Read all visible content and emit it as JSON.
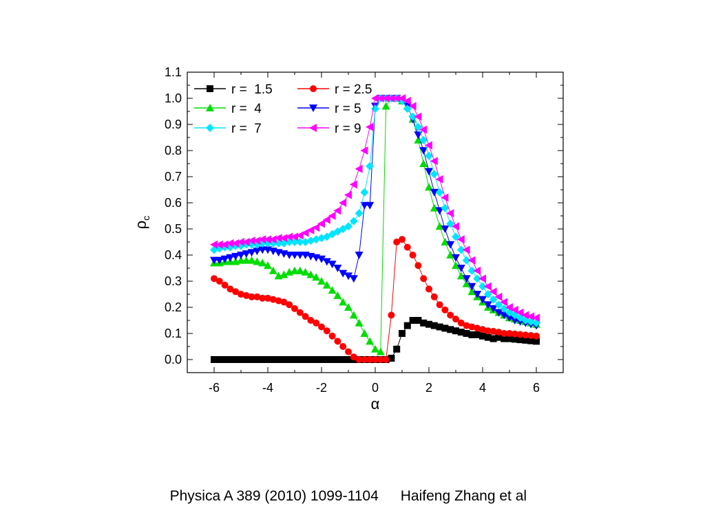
{
  "caption": {
    "citation": "Physica A 389 (2010) 1099-1104",
    "authors": "Haifeng Zhang et al"
  },
  "chart_data": {
    "type": "scatter",
    "xlabel": "α",
    "ylabel": "ρc",
    "xlim": [
      -7,
      7
    ],
    "ylim": [
      -0.05,
      1.1
    ],
    "xticks": [
      "-6",
      "-4",
      "-2",
      "0",
      "2",
      "4",
      "6"
    ],
    "yticks": [
      "0.0",
      "0.1",
      "0.2",
      "0.3",
      "0.4",
      "0.5",
      "0.6",
      "0.7",
      "0.8",
      "0.9",
      "1.0",
      "1.1"
    ],
    "grid": false,
    "legend_position": "top-left",
    "series": [
      {
        "name": "r =  1.5",
        "color": "#000000",
        "marker": "square",
        "x": [
          -6,
          -5.8,
          -5.6,
          -5.4,
          -5.2,
          -5,
          -4.8,
          -4.6,
          -4.4,
          -4.2,
          -4,
          -3.8,
          -3.6,
          -3.4,
          -3.2,
          -3,
          -2.8,
          -2.6,
          -2.4,
          -2.2,
          -2,
          -1.8,
          -1.6,
          -1.4,
          -1.2,
          -1,
          -0.8,
          -0.6,
          -0.4,
          -0.2,
          0,
          0.2,
          0.4,
          0.6,
          0.8,
          1,
          1.2,
          1.4,
          1.6,
          1.8,
          2,
          2.2,
          2.4,
          2.6,
          2.8,
          3,
          3.2,
          3.4,
          3.6,
          3.8,
          4,
          4.2,
          4.4,
          4.6,
          4.8,
          5,
          5.2,
          5.4,
          5.6,
          5.8,
          6
        ],
        "y": [
          0,
          0,
          0,
          0,
          0,
          0,
          0,
          0,
          0,
          0,
          0,
          0,
          0,
          0,
          0,
          0,
          0,
          0,
          0,
          0,
          0,
          0,
          0,
          0,
          0,
          0,
          0,
          0,
          0,
          0,
          0,
          0,
          0,
          0.005,
          0.04,
          0.1,
          0.13,
          0.15,
          0.15,
          0.14,
          0.135,
          0.13,
          0.125,
          0.12,
          0.115,
          0.11,
          0.105,
          0.1,
          0.095,
          0.095,
          0.09,
          0.085,
          0.08,
          0.085,
          0.08,
          0.08,
          0.078,
          0.076,
          0.074,
          0.072,
          0.07
        ]
      },
      {
        "name": "r = 2.5",
        "color": "#ff0000",
        "marker": "circle",
        "x": [
          -6,
          -5.8,
          -5.6,
          -5.4,
          -5.2,
          -5,
          -4.8,
          -4.6,
          -4.4,
          -4.2,
          -4,
          -3.8,
          -3.6,
          -3.4,
          -3.2,
          -3,
          -2.8,
          -2.6,
          -2.4,
          -2.2,
          -2,
          -1.8,
          -1.6,
          -1.4,
          -1.2,
          -1,
          -0.8,
          -0.6,
          -0.4,
          -0.2,
          0,
          0.2,
          0.4,
          0.6,
          0.8,
          1,
          1.2,
          1.4,
          1.6,
          1.8,
          2,
          2.2,
          2.4,
          2.6,
          2.8,
          3,
          3.2,
          3.4,
          3.6,
          3.8,
          4,
          4.2,
          4.4,
          4.6,
          4.8,
          5,
          5.2,
          5.4,
          5.6,
          5.8,
          6
        ],
        "y": [
          0.31,
          0.3,
          0.285,
          0.27,
          0.26,
          0.25,
          0.245,
          0.24,
          0.24,
          0.235,
          0.235,
          0.23,
          0.225,
          0.22,
          0.21,
          0.195,
          0.18,
          0.165,
          0.15,
          0.14,
          0.125,
          0.11,
          0.09,
          0.07,
          0.05,
          0.03,
          0.01,
          0,
          0,
          0,
          0,
          0,
          0,
          0.17,
          0.45,
          0.46,
          0.43,
          0.4,
          0.36,
          0.31,
          0.27,
          0.24,
          0.21,
          0.19,
          0.17,
          0.155,
          0.14,
          0.13,
          0.125,
          0.12,
          0.115,
          0.11,
          0.108,
          0.105,
          0.1,
          0.1,
          0.098,
          0.096,
          0.094,
          0.092,
          0.09
        ]
      },
      {
        "name": "r =  4",
        "color": "#00dd00",
        "marker": "triangle-up",
        "x": [
          -6,
          -5.8,
          -5.6,
          -5.4,
          -5.2,
          -5,
          -4.8,
          -4.6,
          -4.4,
          -4.2,
          -4,
          -3.8,
          -3.6,
          -3.4,
          -3.2,
          -3,
          -2.8,
          -2.6,
          -2.4,
          -2.2,
          -2,
          -1.8,
          -1.6,
          -1.4,
          -1.2,
          -1,
          -0.8,
          -0.6,
          -0.4,
          -0.2,
          0,
          0.2,
          0.4,
          0.6,
          0.8,
          1,
          1.2,
          1.4,
          1.6,
          1.8,
          2,
          2.2,
          2.4,
          2.6,
          2.8,
          3,
          3.2,
          3.4,
          3.6,
          3.8,
          4,
          4.2,
          4.4,
          4.6,
          4.8,
          5,
          5.2,
          5.4,
          5.6,
          5.8,
          6
        ],
        "y": [
          0.37,
          0.37,
          0.375,
          0.375,
          0.375,
          0.38,
          0.38,
          0.38,
          0.375,
          0.37,
          0.36,
          0.34,
          0.32,
          0.325,
          0.335,
          0.34,
          0.34,
          0.335,
          0.325,
          0.315,
          0.3,
          0.285,
          0.265,
          0.245,
          0.22,
          0.2,
          0.17,
          0.14,
          0.1,
          0.07,
          0.04,
          0.03,
          0.97,
          1,
          1,
          0.99,
          0.97,
          0.92,
          0.84,
          0.75,
          0.66,
          0.58,
          0.51,
          0.45,
          0.4,
          0.36,
          0.32,
          0.29,
          0.26,
          0.24,
          0.22,
          0.2,
          0.19,
          0.18,
          0.17,
          0.16,
          0.155,
          0.15,
          0.145,
          0.14,
          0.135
        ]
      },
      {
        "name": "r = 5",
        "color": "#0000ff",
        "marker": "triangle-down",
        "x": [
          -6,
          -5.8,
          -5.6,
          -5.4,
          -5.2,
          -5,
          -4.8,
          -4.6,
          -4.4,
          -4.2,
          -4,
          -3.8,
          -3.6,
          -3.4,
          -3.2,
          -3,
          -2.8,
          -2.6,
          -2.4,
          -2.2,
          -2,
          -1.8,
          -1.6,
          -1.4,
          -1.2,
          -1,
          -0.8,
          -0.6,
          -0.4,
          -0.2,
          0,
          0.2,
          0.4,
          0.6,
          0.8,
          1,
          1.2,
          1.4,
          1.6,
          1.8,
          2,
          2.2,
          2.4,
          2.6,
          2.8,
          3,
          3.2,
          3.4,
          3.6,
          3.8,
          4,
          4.2,
          4.4,
          4.6,
          4.8,
          5,
          5.2,
          5.4,
          5.6,
          5.8,
          6
        ],
        "y": [
          0.38,
          0.38,
          0.385,
          0.39,
          0.395,
          0.4,
          0.405,
          0.41,
          0.415,
          0.42,
          0.42,
          0.415,
          0.41,
          0.405,
          0.4,
          0.4,
          0.4,
          0.4,
          0.395,
          0.39,
          0.385,
          0.375,
          0.365,
          0.35,
          0.33,
          0.32,
          0.31,
          0.4,
          0.59,
          0.59,
          0.97,
          1,
          1,
          1,
          1,
          0.99,
          0.97,
          0.92,
          0.86,
          0.8,
          0.72,
          0.64,
          0.57,
          0.5,
          0.44,
          0.39,
          0.35,
          0.31,
          0.28,
          0.25,
          0.23,
          0.21,
          0.195,
          0.18,
          0.17,
          0.16,
          0.15,
          0.145,
          0.14,
          0.135,
          0.13
        ]
      },
      {
        "name": "r =  7",
        "color": "#00e5ff",
        "marker": "diamond",
        "x": [
          -6,
          -5.8,
          -5.6,
          -5.4,
          -5.2,
          -5,
          -4.8,
          -4.6,
          -4.4,
          -4.2,
          -4,
          -3.8,
          -3.6,
          -3.4,
          -3.2,
          -3,
          -2.8,
          -2.6,
          -2.4,
          -2.2,
          -2,
          -1.8,
          -1.6,
          -1.4,
          -1.2,
          -1,
          -0.8,
          -0.6,
          -0.4,
          -0.2,
          0,
          0.2,
          0.4,
          0.6,
          0.8,
          1,
          1.2,
          1.4,
          1.6,
          1.8,
          2,
          2.2,
          2.4,
          2.6,
          2.8,
          3,
          3.2,
          3.4,
          3.6,
          3.8,
          4,
          4.2,
          4.4,
          4.6,
          4.8,
          5,
          5.2,
          5.4,
          5.6,
          5.8,
          6
        ],
        "y": [
          0.42,
          0.425,
          0.43,
          0.43,
          0.435,
          0.435,
          0.44,
          0.44,
          0.44,
          0.445,
          0.445,
          0.445,
          0.445,
          0.445,
          0.45,
          0.45,
          0.45,
          0.45,
          0.455,
          0.46,
          0.465,
          0.47,
          0.48,
          0.49,
          0.5,
          0.51,
          0.53,
          0.56,
          0.64,
          0.74,
          0.96,
          1,
          1,
          1,
          1,
          0.99,
          0.96,
          0.93,
          0.89,
          0.84,
          0.78,
          0.71,
          0.64,
          0.58,
          0.52,
          0.47,
          0.42,
          0.38,
          0.34,
          0.31,
          0.28,
          0.25,
          0.23,
          0.21,
          0.195,
          0.18,
          0.17,
          0.16,
          0.15,
          0.145,
          0.14
        ]
      },
      {
        "name": "r = 9",
        "color": "#ff00ff",
        "marker": "triangle-left",
        "x": [
          -6,
          -5.8,
          -5.6,
          -5.4,
          -5.2,
          -5,
          -4.8,
          -4.6,
          -4.4,
          -4.2,
          -4,
          -3.8,
          -3.6,
          -3.4,
          -3.2,
          -3,
          -2.8,
          -2.6,
          -2.4,
          -2.2,
          -2,
          -1.8,
          -1.6,
          -1.4,
          -1.2,
          -1,
          -0.8,
          -0.6,
          -0.4,
          -0.2,
          0,
          0.2,
          0.4,
          0.6,
          0.8,
          1,
          1.2,
          1.4,
          1.6,
          1.8,
          2,
          2.2,
          2.4,
          2.6,
          2.8,
          3,
          3.2,
          3.4,
          3.6,
          3.8,
          4,
          4.2,
          4.4,
          4.6,
          4.8,
          5,
          5.2,
          5.4,
          5.6,
          5.8,
          6
        ],
        "y": [
          0.44,
          0.44,
          0.44,
          0.445,
          0.445,
          0.45,
          0.45,
          0.455,
          0.455,
          0.46,
          0.46,
          0.46,
          0.465,
          0.465,
          0.47,
          0.47,
          0.475,
          0.485,
          0.495,
          0.505,
          0.52,
          0.535,
          0.55,
          0.57,
          0.6,
          0.63,
          0.67,
          0.73,
          0.8,
          0.89,
          1,
          1,
          1,
          1,
          1,
          1,
          0.99,
          0.97,
          0.93,
          0.88,
          0.82,
          0.76,
          0.69,
          0.62,
          0.56,
          0.51,
          0.46,
          0.42,
          0.38,
          0.34,
          0.31,
          0.28,
          0.26,
          0.24,
          0.22,
          0.2,
          0.19,
          0.18,
          0.17,
          0.165,
          0.16
        ]
      }
    ]
  }
}
